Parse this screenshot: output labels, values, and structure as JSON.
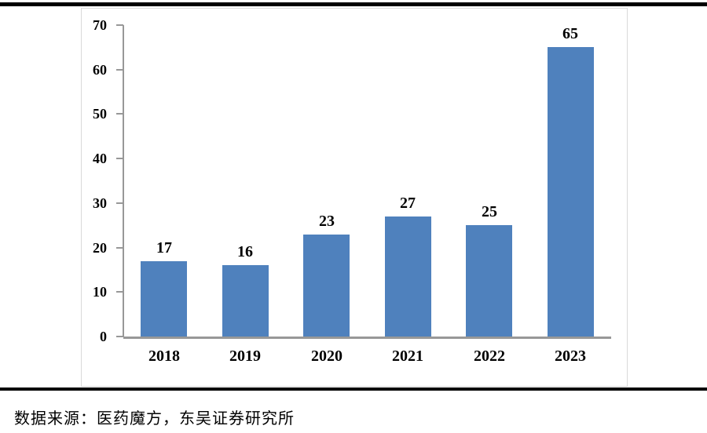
{
  "chart_data": {
    "type": "bar",
    "categories": [
      "2018",
      "2019",
      "2020",
      "2021",
      "2022",
      "2023"
    ],
    "values": [
      17,
      16,
      23,
      27,
      25,
      65
    ],
    "title": "",
    "xlabel": "",
    "ylabel": "",
    "ylim": [
      0,
      70
    ],
    "yticks": [
      0,
      10,
      20,
      30,
      40,
      50,
      60,
      70
    ],
    "grid": false,
    "legend_position": "none",
    "show_data_labels": true,
    "bar_color": "#4F81BD",
    "axis_color": "#989898",
    "label_color": "#000000",
    "plot_border_color": "#D9D9D9"
  },
  "footer": {
    "source_text": "数据来源：医药魔方，东吴证券研究所"
  },
  "decor": {
    "top_rule_color": "#000000",
    "bottom_rule_color": "#000000"
  }
}
